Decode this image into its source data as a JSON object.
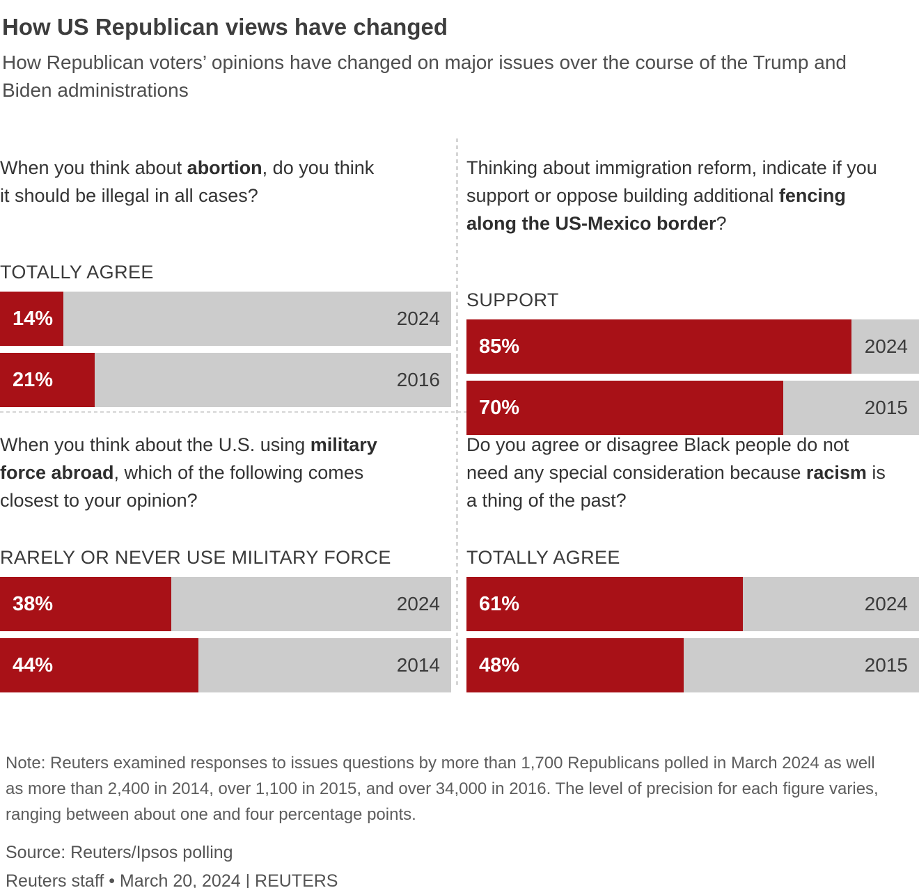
{
  "header": {
    "title": "How US Republican views have changed",
    "subtitle": "How Republican voters’ opinions have changed on major issues over the course of the Trump and Biden administrations"
  },
  "colors": {
    "bar_fill": "#a81117",
    "bar_track": "#cccccc",
    "divider": "#d5d5d5"
  },
  "panels": [
    {
      "id": "abortion",
      "question": {
        "pre": "When you think about ",
        "bold": "abortion",
        "post": ", do you think it should be illegal in all cases?"
      },
      "category_label": "TOTALLY AGREE",
      "bars": [
        {
          "value": 14,
          "label": "14%",
          "year": "2024"
        },
        {
          "value": 21,
          "label": "21%",
          "year": "2016"
        }
      ]
    },
    {
      "id": "border-fencing",
      "question": {
        "pre": "Thinking about immigration reform, indicate if you support or oppose building additional ",
        "bold": "fencing along the US-Mexico border",
        "post": "?"
      },
      "category_label": "SUPPORT",
      "bars": [
        {
          "value": 85,
          "label": "85%",
          "year": "2024"
        },
        {
          "value": 70,
          "label": "70%",
          "year": "2015"
        }
      ]
    },
    {
      "id": "military-force",
      "question": {
        "pre": "When you think about the U.S. using ",
        "bold": "military force abroad",
        "post": ", which of the following comes closest to your opinion?"
      },
      "category_label": "RARELY OR NEVER USE MILITARY FORCE",
      "bars": [
        {
          "value": 38,
          "label": "38%",
          "year": "2024"
        },
        {
          "value": 44,
          "label": "44%",
          "year": "2014"
        }
      ]
    },
    {
      "id": "racism",
      "question": {
        "pre": "Do you agree or disagree Black people do not need any special consideration because ",
        "bold": "racism",
        "post": " is a thing of the past?"
      },
      "category_label": "TOTALLY AGREE",
      "bars": [
        {
          "value": 61,
          "label": "61%",
          "year": "2024"
        },
        {
          "value": 48,
          "label": "48%",
          "year": "2015"
        }
      ]
    }
  ],
  "footer": {
    "note": "Note: Reuters examined responses to issues questions by more than 1,700 Republicans polled in March 2024 as well as more than 2,400 in 2014, over 1,100 in 2015, and over 34,000 in 2016. The level of precision for each figure varies, ranging between about one and four percentage points.",
    "source": "Source: Reuters/Ipsos polling",
    "credit": "Reuters staff • March 20, 2024 | REUTERS"
  },
  "chart_data": [
    {
      "type": "bar",
      "orientation": "horizontal",
      "title": "When you think about abortion, do you think it should be illegal in all cases?",
      "measure": "TOTALLY AGREE",
      "categories": [
        "2024",
        "2016"
      ],
      "values": [
        14,
        21
      ],
      "unit": "%",
      "xlim": [
        0,
        100
      ],
      "grid": false,
      "legend": "none"
    },
    {
      "type": "bar",
      "orientation": "horizontal",
      "title": "Thinking about immigration reform, indicate if you support or oppose building additional fencing along the US-Mexico border?",
      "measure": "SUPPORT",
      "categories": [
        "2024",
        "2015"
      ],
      "values": [
        85,
        70
      ],
      "unit": "%",
      "xlim": [
        0,
        100
      ],
      "grid": false,
      "legend": "none"
    },
    {
      "type": "bar",
      "orientation": "horizontal",
      "title": "When you think about the U.S. using military force abroad, which of the following comes closest to your opinion?",
      "measure": "RARELY OR NEVER USE MILITARY FORCE",
      "categories": [
        "2024",
        "2014"
      ],
      "values": [
        38,
        44
      ],
      "unit": "%",
      "xlim": [
        0,
        100
      ],
      "grid": false,
      "legend": "none"
    },
    {
      "type": "bar",
      "orientation": "horizontal",
      "title": "Do you agree or disagree Black people do not need any special consideration because racism is a thing of the past?",
      "measure": "TOTALLY AGREE",
      "categories": [
        "2024",
        "2015"
      ],
      "values": [
        61,
        48
      ],
      "unit": "%",
      "xlim": [
        0,
        100
      ],
      "grid": false,
      "legend": "none"
    }
  ]
}
